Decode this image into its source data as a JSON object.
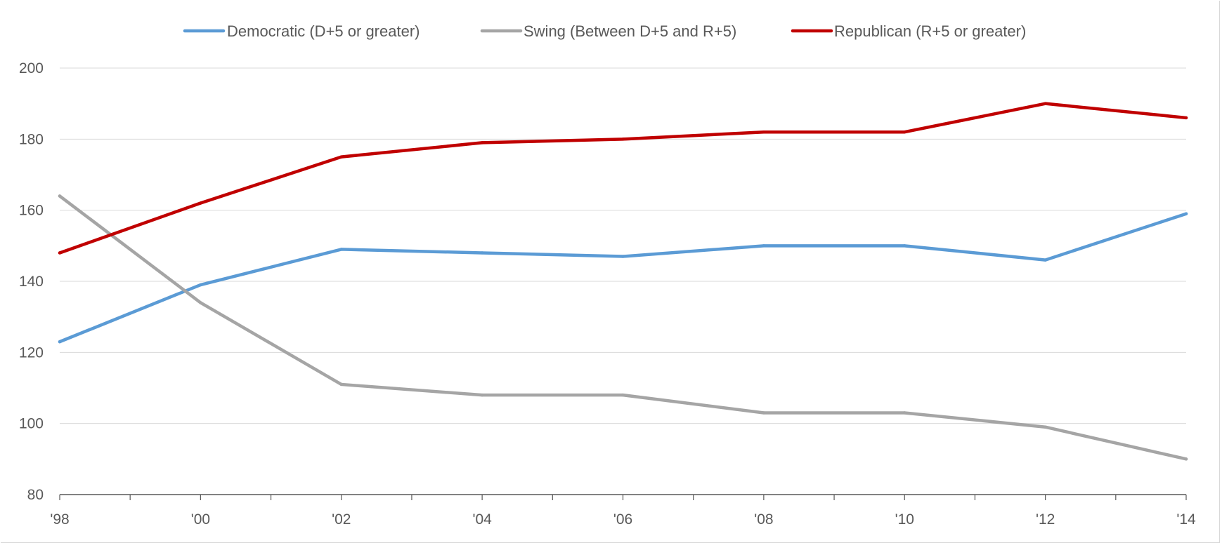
{
  "chart_data": {
    "type": "line",
    "title": "",
    "xlabel": "",
    "ylabel": "",
    "x": [
      "'98",
      "'00",
      "'02",
      "'04",
      "'06",
      "'08",
      "'10",
      "'12",
      "'14"
    ],
    "x_values": [
      1998,
      2000,
      2002,
      2004,
      2006,
      2008,
      2010,
      2012,
      2014
    ],
    "ylim": [
      80,
      200
    ],
    "yticks": [
      80,
      100,
      120,
      140,
      160,
      180,
      200
    ],
    "grid": true,
    "legend_position": "top",
    "series": [
      {
        "name": "Democratic (D+5 or greater)",
        "color": "#5b9bd5",
        "values": [
          123,
          139,
          149,
          148,
          147,
          150,
          150,
          146,
          159
        ]
      },
      {
        "name": "Swing (Between D+5 and R+5)",
        "color": "#a5a5a5",
        "values": [
          164,
          134,
          111,
          108,
          108,
          103,
          103,
          99,
          90
        ]
      },
      {
        "name": "Republican (R+5 or greater)",
        "color": "#c00000",
        "values": [
          148,
          162,
          175,
          179,
          180,
          182,
          182,
          190,
          186
        ]
      }
    ]
  }
}
